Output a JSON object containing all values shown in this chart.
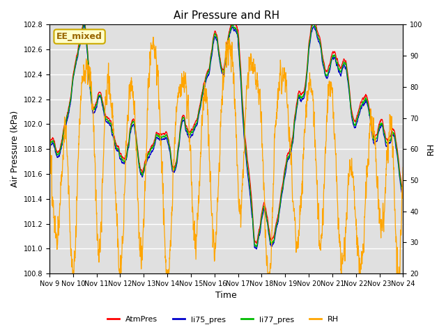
{
  "title": "Air Pressure and RH",
  "xlabel": "Time",
  "ylabel_left": "Air Pressure (kPa)",
  "ylabel_right": "RH",
  "ylim_left": [
    100.8,
    102.8
  ],
  "ylim_right": [
    20,
    100
  ],
  "yticks_left": [
    100.8,
    101.0,
    101.2,
    101.4,
    101.6,
    101.8,
    102.0,
    102.2,
    102.4,
    102.6,
    102.8
  ],
  "yticks_right": [
    20,
    30,
    40,
    50,
    60,
    70,
    80,
    90,
    100
  ],
  "xtick_labels": [
    "Nov 9",
    "Nov 10",
    "Nov 11",
    "Nov 12",
    "Nov 13",
    "Nov 14",
    "Nov 15",
    "Nov 16",
    "Nov 17",
    "Nov 18",
    "Nov 19",
    "Nov 20",
    "Nov 21",
    "Nov 22",
    "Nov 23",
    "Nov 24"
  ],
  "colors": {
    "AtmPres": "#ff0000",
    "li75_pres": "#0000cc",
    "li77_pres": "#00bb00",
    "RH": "#ffa500"
  },
  "annotation_text": "EE_mixed",
  "annotation_fg": "#996600",
  "annotation_bg": "#ffffcc",
  "annotation_edge": "#ccaa00",
  "bg_color": "#e0e0e0",
  "linewidth": 0.9
}
